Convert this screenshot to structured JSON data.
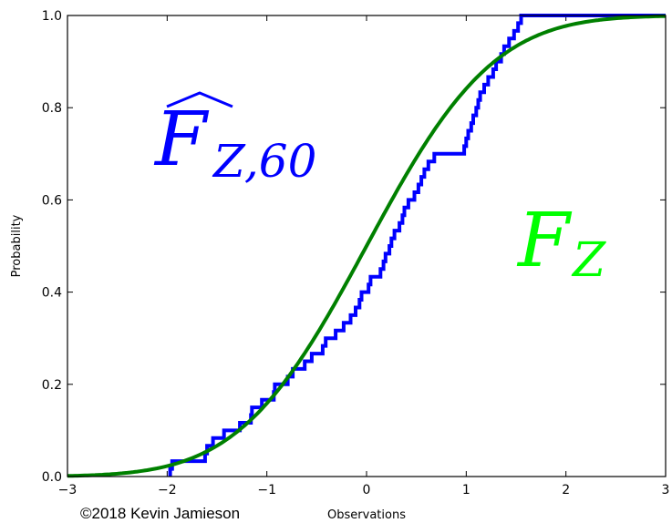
{
  "chart_data": {
    "type": "line",
    "xlabel": "Observations",
    "ylabel": "Probability",
    "xlim": [
      -3,
      3
    ],
    "ylim": [
      0,
      1
    ],
    "x_ticks": [
      "−3",
      "−2",
      "−1",
      "0",
      "1",
      "2",
      "3"
    ],
    "y_ticks": [
      "0.0",
      "0.2",
      "0.4",
      "0.6",
      "0.8",
      "1.0"
    ],
    "grid": false,
    "credit": "©2018 Kevin Jamieson",
    "annotations": {
      "empirical": {
        "main": "F",
        "sub": "Z,60",
        "color": "#0000ff"
      },
      "true": {
        "main": "F",
        "sub": "Z",
        "color": "#00ff00"
      }
    },
    "series": [
      {
        "type": "step",
        "color": "#0000ff",
        "observations": [
          -1.97,
          -1.95,
          -1.62,
          -1.6,
          -1.54,
          -1.43,
          -1.27,
          -1.16,
          -1.15,
          -1.05,
          -0.93,
          -0.92,
          -0.79,
          -0.74,
          -0.62,
          -0.55,
          -0.44,
          -0.41,
          -0.31,
          -0.23,
          -0.16,
          -0.11,
          -0.07,
          -0.05,
          0.02,
          0.04,
          0.14,
          0.17,
          0.19,
          0.23,
          0.25,
          0.28,
          0.33,
          0.36,
          0.38,
          0.42,
          0.48,
          0.52,
          0.55,
          0.58,
          0.62,
          0.68,
          0.98,
          1.0,
          1.02,
          1.05,
          1.07,
          1.1,
          1.12,
          1.14,
          1.18,
          1.22,
          1.27,
          1.3,
          1.35,
          1.38,
          1.43,
          1.48,
          1.52,
          1.55
        ]
      },
      {
        "type": "line",
        "color": "#008000",
        "function": "standard normal CDF"
      }
    ]
  }
}
